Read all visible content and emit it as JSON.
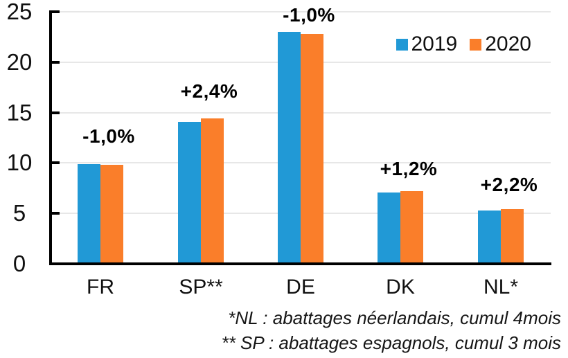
{
  "chart_data": {
    "type": "bar",
    "title": "",
    "categories": [
      "FR",
      "SP**",
      "DE",
      "DK",
      "NL*"
    ],
    "series": [
      {
        "name": "2019",
        "color": "#2199D6",
        "values": [
          9.9,
          14.1,
          23.0,
          7.1,
          5.3
        ]
      },
      {
        "name": "2020",
        "color": "#FA7E2A",
        "values": [
          9.8,
          14.4,
          22.8,
          7.2,
          5.4
        ]
      }
    ],
    "delta_labels": [
      "-1,0%",
      "+2,4%",
      "-1,0%",
      "+1,2%",
      "+2,2%"
    ],
    "ylim": [
      0,
      25
    ],
    "yticks": [
      0,
      5,
      10,
      15,
      20,
      25
    ],
    "grid": true,
    "legend_position": "top-right",
    "axis_color": "#000000",
    "grid_color": "#E7E7E7",
    "footnotes": [
      "*NL : abattages néerlandais, cumul 4mois",
      "** SP : abattages espagnols, cumul 3 mois"
    ]
  }
}
